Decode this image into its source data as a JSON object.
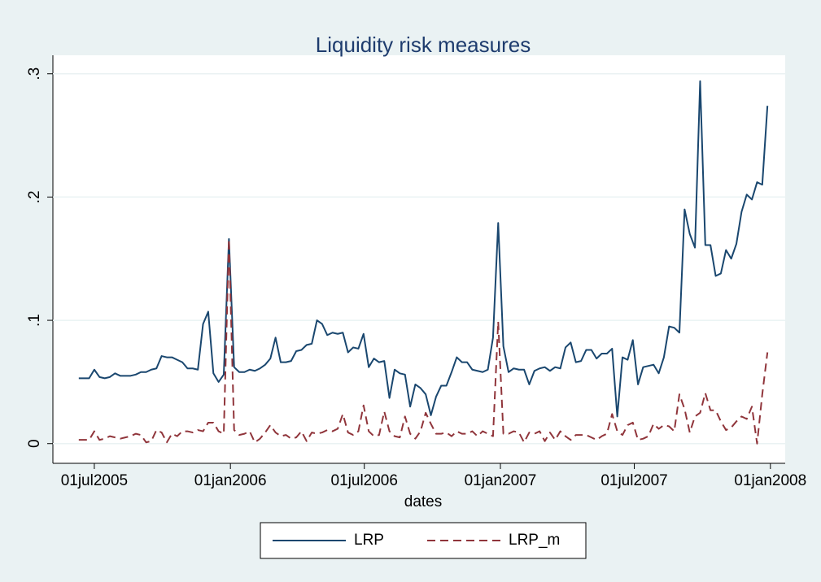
{
  "chart_data": {
    "type": "line",
    "title": "Liquidity risk measures",
    "x_label": "dates",
    "x": [
      "2005-06-10",
      "2005-06-17",
      "2005-06-24",
      "2005-07-01",
      "2005-07-08",
      "2005-07-15",
      "2005-07-22",
      "2005-07-29",
      "2005-08-05",
      "2005-08-12",
      "2005-08-19",
      "2005-08-26",
      "2005-09-02",
      "2005-09-09",
      "2005-09-16",
      "2005-09-23",
      "2005-09-30",
      "2005-10-07",
      "2005-10-14",
      "2005-10-21",
      "2005-10-28",
      "2005-11-04",
      "2005-11-11",
      "2005-11-18",
      "2005-11-25",
      "2005-12-02",
      "2005-12-09",
      "2005-12-16",
      "2005-12-23",
      "2005-12-30",
      "2006-01-06",
      "2006-01-13",
      "2006-01-20",
      "2006-01-27",
      "2006-02-03",
      "2006-02-10",
      "2006-02-17",
      "2006-02-24",
      "2006-03-03",
      "2006-03-10",
      "2006-03-17",
      "2006-03-24",
      "2006-03-31",
      "2006-04-07",
      "2006-04-14",
      "2006-04-21",
      "2006-04-28",
      "2006-05-05",
      "2006-05-12",
      "2006-05-19",
      "2006-05-26",
      "2006-06-02",
      "2006-06-09",
      "2006-06-16",
      "2006-06-23",
      "2006-06-30",
      "2006-07-07",
      "2006-07-14",
      "2006-07-21",
      "2006-07-28",
      "2006-08-04",
      "2006-08-11",
      "2006-08-18",
      "2006-08-25",
      "2006-09-01",
      "2006-09-08",
      "2006-09-15",
      "2006-09-22",
      "2006-09-29",
      "2006-10-06",
      "2006-10-13",
      "2006-10-20",
      "2006-10-27",
      "2006-11-03",
      "2006-11-10",
      "2006-11-17",
      "2006-11-24",
      "2006-12-01",
      "2006-12-08",
      "2006-12-15",
      "2006-12-22",
      "2006-12-29",
      "2007-01-05",
      "2007-01-12",
      "2007-01-19",
      "2007-01-26",
      "2007-02-02",
      "2007-02-09",
      "2007-02-16",
      "2007-02-23",
      "2007-03-02",
      "2007-03-09",
      "2007-03-16",
      "2007-03-23",
      "2007-03-30",
      "2007-04-06",
      "2007-04-13",
      "2007-04-20",
      "2007-04-27",
      "2007-05-04",
      "2007-05-11",
      "2007-05-18",
      "2007-05-25",
      "2007-06-01",
      "2007-06-08",
      "2007-06-15",
      "2007-06-22",
      "2007-06-29",
      "2007-07-06",
      "2007-07-13",
      "2007-07-20",
      "2007-07-27",
      "2007-08-03",
      "2007-08-10",
      "2007-08-17",
      "2007-08-24",
      "2007-08-31",
      "2007-09-07",
      "2007-09-14",
      "2007-09-21",
      "2007-09-28",
      "2007-10-05",
      "2007-10-12",
      "2007-10-19",
      "2007-10-26",
      "2007-11-02",
      "2007-11-09",
      "2007-11-16",
      "2007-11-23",
      "2007-11-30",
      "2007-12-07",
      "2007-12-14",
      "2007-12-21",
      "2007-12-28"
    ],
    "series": [
      {
        "name": "LRP",
        "color": "#1a476f",
        "dash": false,
        "values": [
          0.053,
          0.053,
          0.053,
          0.06,
          0.054,
          0.053,
          0.054,
          0.057,
          0.055,
          0.055,
          0.055,
          0.056,
          0.058,
          0.058,
          0.06,
          0.061,
          0.071,
          0.07,
          0.07,
          0.068,
          0.066,
          0.061,
          0.061,
          0.06,
          0.097,
          0.107,
          0.057,
          0.05,
          0.056,
          0.166,
          0.062,
          0.058,
          0.058,
          0.06,
          0.059,
          0.061,
          0.064,
          0.069,
          0.086,
          0.066,
          0.066,
          0.067,
          0.075,
          0.076,
          0.08,
          0.081,
          0.1,
          0.097,
          0.088,
          0.09,
          0.089,
          0.09,
          0.074,
          0.078,
          0.077,
          0.089,
          0.062,
          0.069,
          0.066,
          0.067,
          0.037,
          0.06,
          0.057,
          0.056,
          0.03,
          0.048,
          0.045,
          0.04,
          0.023,
          0.038,
          0.047,
          0.047,
          0.058,
          0.07,
          0.066,
          0.066,
          0.06,
          0.059,
          0.058,
          0.06,
          0.086,
          0.179,
          0.079,
          0.058,
          0.061,
          0.06,
          0.06,
          0.048,
          0.059,
          0.061,
          0.062,
          0.059,
          0.062,
          0.061,
          0.078,
          0.082,
          0.066,
          0.067,
          0.076,
          0.076,
          0.069,
          0.073,
          0.073,
          0.077,
          0.022,
          0.07,
          0.068,
          0.084,
          0.048,
          0.062,
          0.063,
          0.064,
          0.057,
          0.07,
          0.095,
          0.094,
          0.09,
          0.19,
          0.17,
          0.159,
          0.294,
          0.161,
          0.161,
          0.136,
          0.138,
          0.157,
          0.15,
          0.162,
          0.188,
          0.202,
          0.198,
          0.212,
          0.21,
          0.274
        ]
      },
      {
        "name": "LRP_m",
        "color": "#90353b",
        "dash": true,
        "values": [
          0.003,
          0.003,
          0.003,
          0.01,
          0.003,
          0.004,
          0.006,
          0.005,
          0.004,
          0.005,
          0.006,
          0.008,
          0.007,
          0.001,
          0.002,
          0.011,
          0.009,
          0.001,
          0.008,
          0.006,
          0.01,
          0.01,
          0.009,
          0.011,
          0.01,
          0.017,
          0.017,
          0.01,
          0.008,
          0.166,
          0.011,
          0.007,
          0.008,
          0.01,
          0.001,
          0.004,
          0.009,
          0.015,
          0.009,
          0.006,
          0.007,
          0.004,
          0.005,
          0.01,
          0.002,
          0.009,
          0.008,
          0.009,
          0.011,
          0.01,
          0.012,
          0.024,
          0.009,
          0.007,
          0.01,
          0.031,
          0.01,
          0.006,
          0.007,
          0.026,
          0.01,
          0.006,
          0.005,
          0.022,
          0.008,
          0.004,
          0.01,
          0.025,
          0.016,
          0.008,
          0.008,
          0.009,
          0.006,
          0.01,
          0.008,
          0.008,
          0.01,
          0.006,
          0.01,
          0.008,
          0.006,
          0.099,
          0.008,
          0.008,
          0.01,
          0.009,
          0.001,
          0.009,
          0.008,
          0.01,
          0.002,
          0.009,
          0.003,
          0.01,
          0.006,
          0.003,
          0.007,
          0.007,
          0.007,
          0.005,
          0.003,
          0.006,
          0.008,
          0.024,
          0.01,
          0.007,
          0.015,
          0.017,
          0.003,
          0.004,
          0.006,
          0.016,
          0.012,
          0.015,
          0.014,
          0.01,
          0.04,
          0.028,
          0.009,
          0.022,
          0.025,
          0.041,
          0.027,
          0.027,
          0.018,
          0.011,
          0.013,
          0.018,
          0.022,
          0.02,
          0.03,
          0.0,
          0.04,
          0.074
        ]
      }
    ],
    "xlim": [
      "2005-05-06",
      "2008-01-21"
    ],
    "xticks": [
      {
        "value": "2005-07-01",
        "label": "01jul2005"
      },
      {
        "value": "2006-01-01",
        "label": "01jan2006"
      },
      {
        "value": "2006-07-01",
        "label": "01jul2006"
      },
      {
        "value": "2007-01-01",
        "label": "01jan2007"
      },
      {
        "value": "2007-07-01",
        "label": "01jul2007"
      },
      {
        "value": "2008-01-01",
        "label": "01jan2008"
      }
    ],
    "ylim": [
      -0.016,
      0.315
    ],
    "yticks": [
      {
        "value": 0,
        "label": "0"
      },
      {
        "value": 0.1,
        "label": ".1"
      },
      {
        "value": 0.2,
        "label": ".2"
      },
      {
        "value": 0.3,
        "label": ".3"
      }
    ],
    "grid": true,
    "legend": "bottom"
  }
}
